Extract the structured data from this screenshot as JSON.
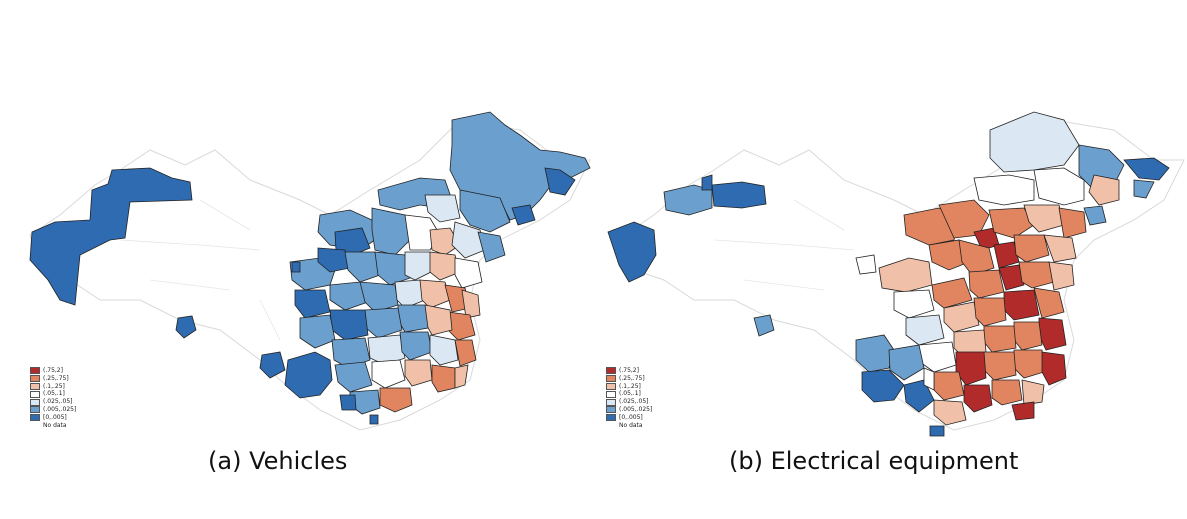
{
  "colors": {
    "bin0": "#2f6bb0",
    "bin1": "#6b9fce",
    "bin2": "#dbe7f2",
    "bin3": "#ffffff",
    "bin4": "#f1c0a8",
    "bin5": "#e0855f",
    "bin6": "#b12b2b",
    "outline": "#d9d9d9",
    "border": "#222222"
  },
  "legend": [
    {
      "label": "(.75,2]",
      "color": "#b12b2b"
    },
    {
      "label": "(.25,.75]",
      "color": "#e0855f"
    },
    {
      "label": "(.1,.25]",
      "color": "#f1c0a8"
    },
    {
      "label": "(.05,.1]",
      "color": "#ffffff"
    },
    {
      "label": "(.025,.05]",
      "color": "#dbe7f2"
    },
    {
      "label": "(.005,.025]",
      "color": "#6b9fce"
    },
    {
      "label": "[0,.005]",
      "color": "#2f6bb0"
    },
    {
      "label": "No data",
      "color": null
    }
  ],
  "panels": [
    {
      "caption": "(a)  Vehicles"
    },
    {
      "caption": "(b) Electrical equipment"
    }
  ]
}
